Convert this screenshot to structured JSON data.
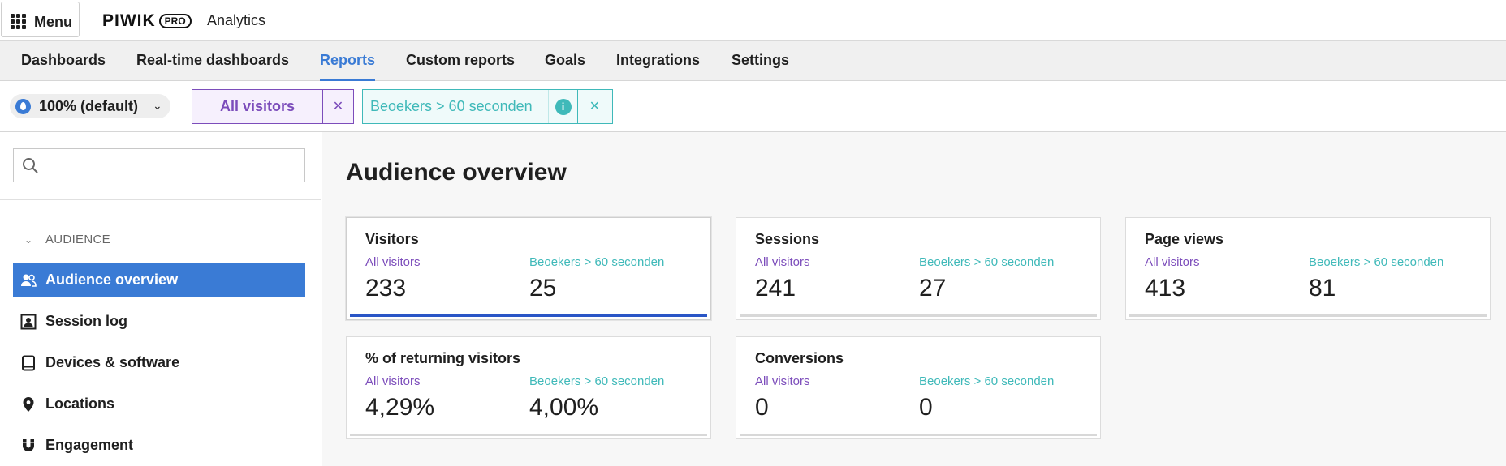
{
  "topbar": {
    "menu_label": "Menu",
    "logo_word": "PIWIK",
    "logo_badge": "PRO",
    "app_name": "Analytics"
  },
  "nav": {
    "items": [
      {
        "label": "Dashboards",
        "active": false
      },
      {
        "label": "Real-time dashboards",
        "active": false
      },
      {
        "label": "Reports",
        "active": true
      },
      {
        "label": "Custom reports",
        "active": false
      },
      {
        "label": "Goals",
        "active": false
      },
      {
        "label": "Integrations",
        "active": false
      },
      {
        "label": "Settings",
        "active": false
      }
    ]
  },
  "filters": {
    "sampling_label": "100% (default)",
    "segment_a": "All visitors",
    "segment_b": "Beoekers > 60 seconden",
    "info_glyph": "i",
    "close_glyph": "✕"
  },
  "sidebar": {
    "search_placeholder": "",
    "section": "AUDIENCE",
    "items": [
      {
        "label": "Audience overview",
        "icon": "users-icon",
        "active": true
      },
      {
        "label": "Session log",
        "icon": "person-card-icon",
        "active": false
      },
      {
        "label": "Devices & software",
        "icon": "tablet-icon",
        "active": false
      },
      {
        "label": "Locations",
        "icon": "map-pin-icon",
        "active": false
      },
      {
        "label": "Engagement",
        "icon": "magnet-icon",
        "active": false
      }
    ]
  },
  "main": {
    "title": "Audience overview",
    "cards": [
      {
        "title": "Visitors",
        "label_a": "All visitors",
        "label_b": "Beoekers > 60 seconden",
        "value_a": "233",
        "value_b": "25",
        "selected": true
      },
      {
        "title": "Sessions",
        "label_a": "All visitors",
        "label_b": "Beoekers > 60 seconden",
        "value_a": "241",
        "value_b": "27",
        "selected": false
      },
      {
        "title": "Page views",
        "label_a": "All visitors",
        "label_b": "Beoekers > 60 seconden",
        "value_a": "413",
        "value_b": "81",
        "selected": false
      },
      {
        "title": "% of returning visitors",
        "label_a": "All visitors",
        "label_b": "Beoekers > 60 seconden",
        "value_a": "4,29%",
        "value_b": "4,00%",
        "selected": false
      },
      {
        "title": "Conversions",
        "label_a": "All visitors",
        "label_b": "Beoekers > 60 seconden",
        "value_a": "0",
        "value_b": "0",
        "selected": false
      }
    ]
  },
  "colors": {
    "accent": "#3a7bd5",
    "segment_a": "#7c4dbb",
    "segment_b": "#3fb9b9",
    "selected_bar": "#2a56c6"
  }
}
